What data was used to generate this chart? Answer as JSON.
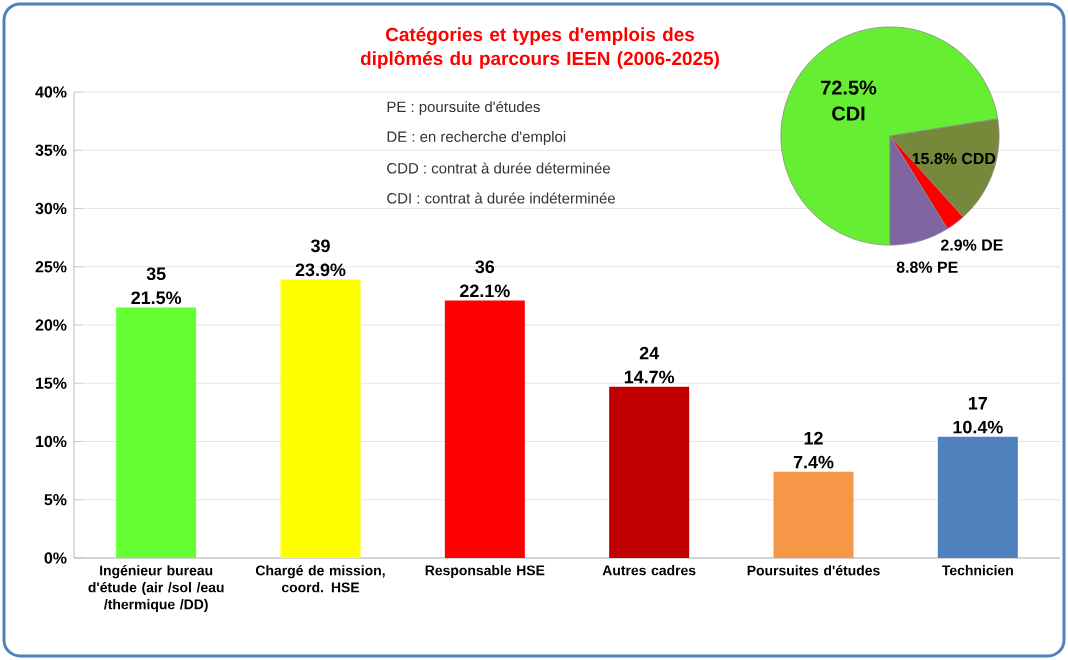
{
  "chart_data": [
    {
      "type": "bar",
      "title": "Catégories et types d'emplois des diplômés du parcours IEEN (2006-2025)",
      "categories": [
        "Ingénieur bureau d'étude (air /sol /eau /thermique /DD)",
        "Chargé de mission, coord. HSE",
        "Responsable HSE",
        "Autres cadres",
        "Poursuites d'études",
        "Technicien"
      ],
      "values": [
        21.5,
        23.9,
        22.1,
        14.7,
        7.4,
        10.4
      ],
      "colors": [
        "#66ff33",
        "#ffff00",
        "#ff0000",
        "#c00000",
        "#f79646",
        "#4f81bd"
      ],
      "value_labels": [
        "21.5%",
        "23.9%",
        "22.1%",
        "14.7%",
        "7.4%",
        "10.4%"
      ],
      "annotations": [
        {
          "text": "35",
          "x": "Ingénieur bureau d'étude (air /sol /eau /thermique /DD)",
          "y": 21.5
        },
        {
          "text": "39",
          "x": "Chargé de mission, coord. HSE",
          "y": 23.9
        },
        {
          "text": "36",
          "x": "Responsable HSE",
          "y": 22.1
        },
        {
          "text": "24",
          "x": "Autres cadres",
          "y": 14.7
        },
        {
          "text": "12",
          "x": "Poursuites d'études",
          "y": 7.4
        },
        {
          "text": "17",
          "x": "Technicien",
          "y": 10.4
        }
      ],
      "ylim": [
        0,
        40
      ],
      "yticks": [
        {
          "value": 0,
          "label": "0%"
        },
        {
          "value": 5,
          "label": "5%"
        },
        {
          "value": 10,
          "label": "10%"
        },
        {
          "value": 15,
          "label": "15%"
        },
        {
          "value": 20,
          "label": "20%"
        },
        {
          "value": 25,
          "label": "25%"
        },
        {
          "value": 30,
          "label": "30%"
        },
        {
          "value": 35,
          "label": "35%"
        },
        {
          "value": 40,
          "label": "40%"
        }
      ],
      "grid": "y"
    },
    {
      "type": "pie",
      "categories": [
        "CDI",
        "CDD",
        "DE",
        "PE"
      ],
      "values": [
        72.5,
        15.8,
        2.9,
        8.8
      ],
      "colors": [
        "#66ee33",
        "#77883a",
        "#ff0000",
        "#8064a2"
      ],
      "value_labels": [
        "72.5%",
        "15.8%",
        "2.9%",
        "8.8%"
      ],
      "annotations": [
        "PE : poursuite d'études",
        "DE : en recherche d'emploi",
        "CDD : contrat à durée déterminée",
        "CDI : contrat à durée indéterminée"
      ]
    }
  ]
}
